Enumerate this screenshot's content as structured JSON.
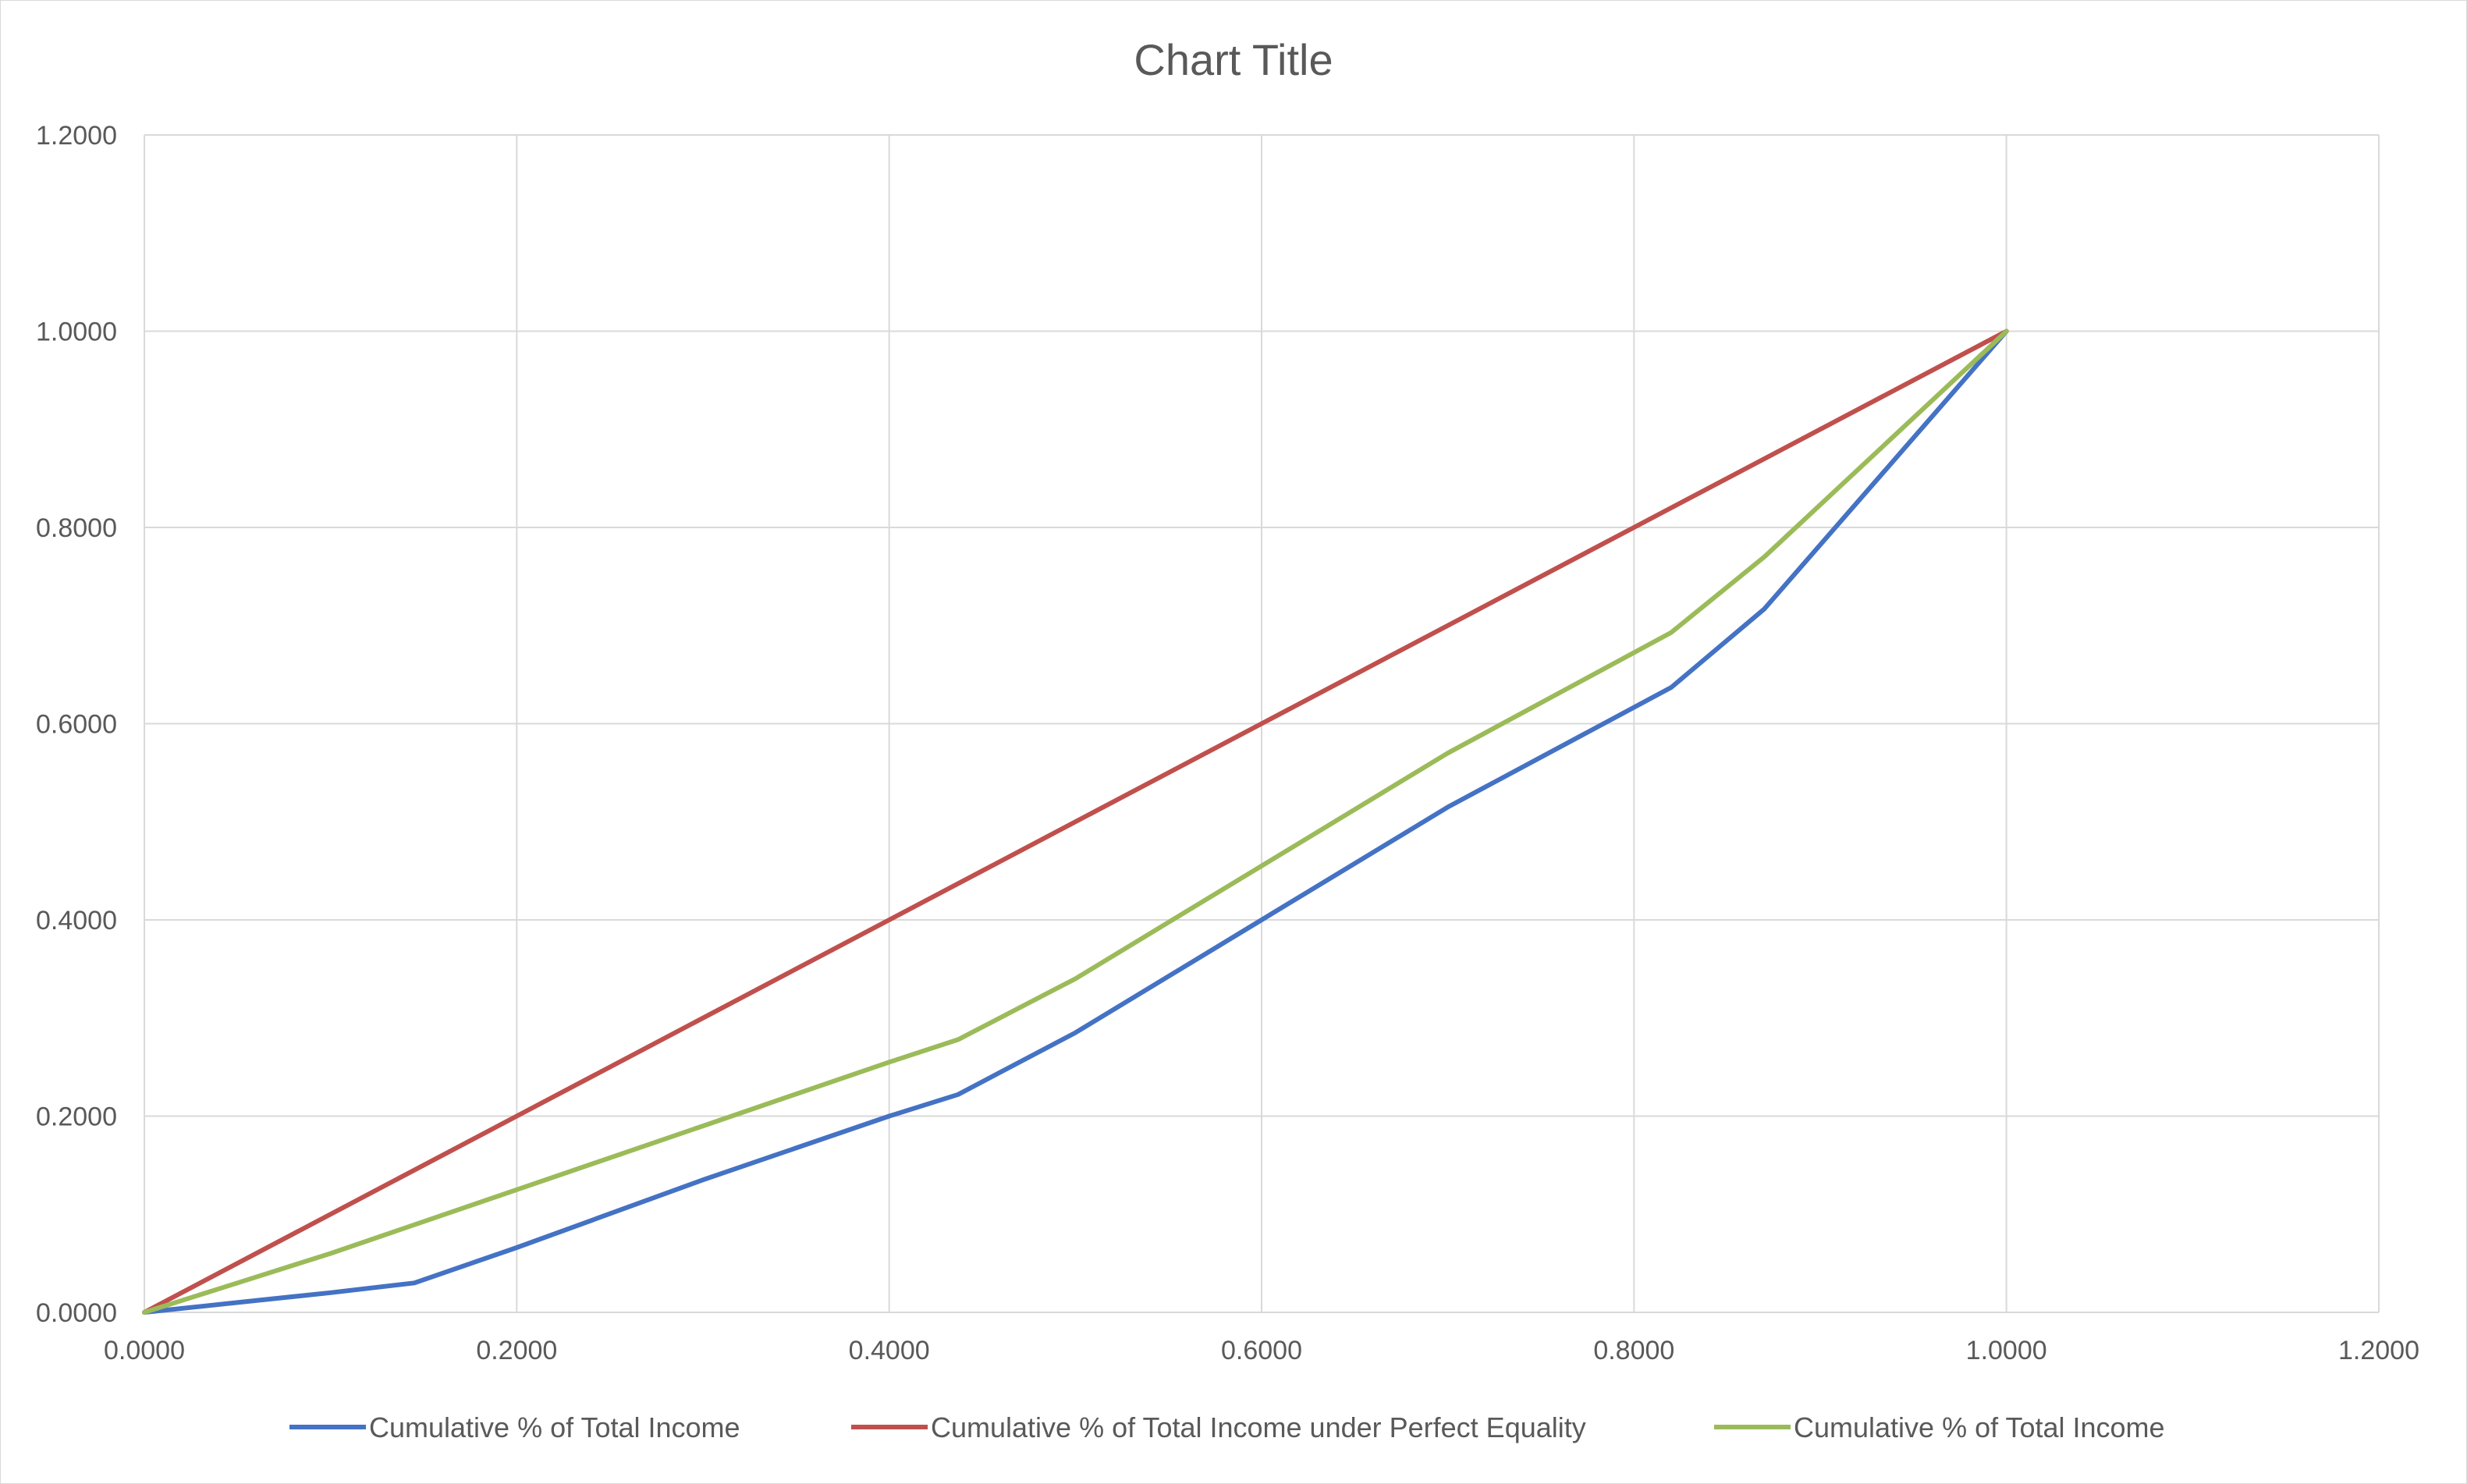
{
  "chart_data": {
    "type": "scatter",
    "title": "Chart Title",
    "xlabel": "",
    "ylabel": "",
    "xlim": [
      0,
      1.2
    ],
    "ylim": [
      0,
      1.2
    ],
    "x_ticks": [
      "0.0000",
      "0.2000",
      "0.4000",
      "0.6000",
      "0.8000",
      "1.0000",
      "1.2000"
    ],
    "y_ticks": [
      "0.0000",
      "0.2000",
      "0.4000",
      "0.6000",
      "0.8000",
      "1.0000",
      "1.2000"
    ],
    "grid": true,
    "legend_position": "bottom",
    "series": [
      {
        "name": "Cumulative % of Total Income",
        "color": "#4472C4",
        "points": [
          [
            0,
            0
          ],
          [
            0.05,
            0.01
          ],
          [
            0.1,
            0.02
          ],
          [
            0.145,
            0.03
          ],
          [
            0.2,
            0.066
          ],
          [
            0.3,
            0.135
          ],
          [
            0.4,
            0.2
          ],
          [
            0.437,
            0.222
          ],
          [
            0.5,
            0.285
          ],
          [
            0.6,
            0.4
          ],
          [
            0.7,
            0.515
          ],
          [
            0.82,
            0.637
          ],
          [
            0.87,
            0.717
          ],
          [
            1.0,
            1.0
          ]
        ]
      },
      {
        "name": "Cumulative % of Total Income under Perfect Equality",
        "color": "#C0504D",
        "points": [
          [
            0,
            0
          ],
          [
            0.2,
            0.2
          ],
          [
            0.4,
            0.4
          ],
          [
            0.6,
            0.6
          ],
          [
            0.8,
            0.8
          ],
          [
            1.0,
            1.0
          ]
        ]
      },
      {
        "name": "Cumulative % of Total Income",
        "color": "#9BBB59",
        "points": [
          [
            0,
            0
          ],
          [
            0.05,
            0.03
          ],
          [
            0.1,
            0.06
          ],
          [
            0.2,
            0.125
          ],
          [
            0.3,
            0.19
          ],
          [
            0.4,
            0.255
          ],
          [
            0.437,
            0.278
          ],
          [
            0.5,
            0.34
          ],
          [
            0.6,
            0.455
          ],
          [
            0.7,
            0.57
          ],
          [
            0.82,
            0.693
          ],
          [
            0.87,
            0.77
          ],
          [
            1.0,
            1.0
          ]
        ]
      }
    ]
  }
}
